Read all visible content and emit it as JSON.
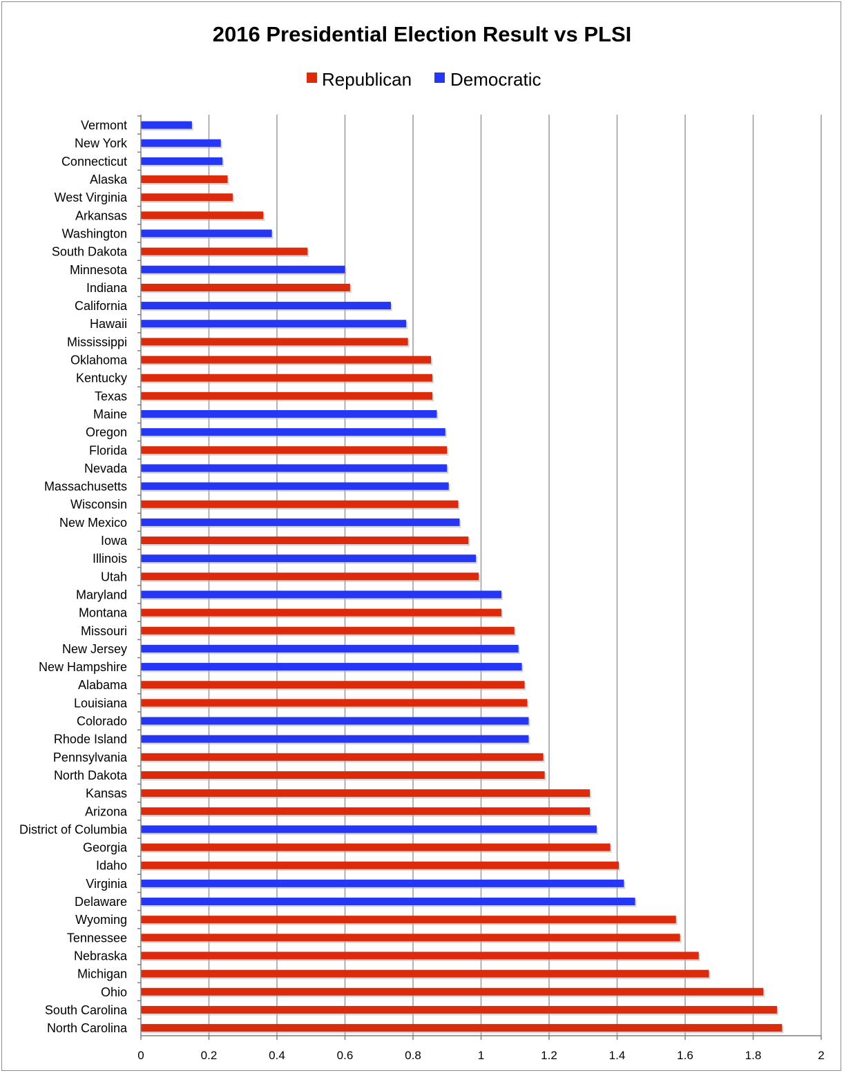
{
  "chart_data": {
    "type": "bar",
    "orientation": "horizontal",
    "title": "2016 Presidential Election Result vs PLSI",
    "xlabel": "",
    "ylabel": "",
    "xlim": [
      0,
      2
    ],
    "x_ticks": [
      "0",
      "0.2",
      "0.4",
      "0.6",
      "0.8",
      "1",
      "1.2",
      "1.4",
      "1.6",
      "1.8",
      "2"
    ],
    "grid": true,
    "legend_position": "top-center",
    "legend": [
      {
        "name": "Republican",
        "color": "#dd2a0b"
      },
      {
        "name": "Democratic",
        "color": "#2536f5"
      }
    ],
    "categories": [
      "Vermont",
      "New York",
      "Connecticut",
      "Alaska",
      "West Virginia",
      "Arkansas",
      "Washington",
      "South Dakota",
      "Minnesota",
      "Indiana",
      "California",
      "Hawaii",
      "Mississippi",
      "Oklahoma",
      "Kentucky",
      "Texas",
      "Maine",
      "Oregon",
      "Florida",
      "Nevada",
      "Massachusetts",
      "Wisconsin",
      "New Mexico",
      "Iowa",
      "Illinois",
      "Utah",
      "Maryland",
      "Montana",
      "Missouri",
      "New Jersey",
      "New Hampshire",
      "Alabama",
      "Louisiana",
      "Colorado",
      "Rhode Island",
      "Pennsylvania",
      "North Dakota",
      "Kansas",
      "Arizona",
      "District of Columbia",
      "Georgia",
      "Idaho",
      "Virginia",
      "Delaware",
      "Wyoming",
      "Tennessee",
      "Nebraska",
      "Michigan",
      "Ohio",
      "South Carolina",
      "North Carolina"
    ],
    "values": [
      0.15,
      0.235,
      0.24,
      0.255,
      0.27,
      0.36,
      0.385,
      0.49,
      0.6,
      0.615,
      0.735,
      0.78,
      0.785,
      0.853,
      0.857,
      0.857,
      0.87,
      0.895,
      0.9,
      0.9,
      0.905,
      0.933,
      0.937,
      0.963,
      0.985,
      0.993,
      1.06,
      1.06,
      1.098,
      1.11,
      1.12,
      1.128,
      1.136,
      1.14,
      1.14,
      1.183,
      1.187,
      1.32,
      1.32,
      1.34,
      1.38,
      1.405,
      1.42,
      1.453,
      1.573,
      1.585,
      1.64,
      1.67,
      1.83,
      1.87,
      1.885
    ],
    "party": [
      "Democratic",
      "Democratic",
      "Democratic",
      "Republican",
      "Republican",
      "Republican",
      "Democratic",
      "Republican",
      "Democratic",
      "Republican",
      "Democratic",
      "Democratic",
      "Republican",
      "Republican",
      "Republican",
      "Republican",
      "Democratic",
      "Democratic",
      "Republican",
      "Democratic",
      "Democratic",
      "Republican",
      "Democratic",
      "Republican",
      "Democratic",
      "Republican",
      "Democratic",
      "Republican",
      "Republican",
      "Democratic",
      "Democratic",
      "Republican",
      "Republican",
      "Democratic",
      "Democratic",
      "Republican",
      "Republican",
      "Republican",
      "Republican",
      "Democratic",
      "Republican",
      "Republican",
      "Democratic",
      "Democratic",
      "Republican",
      "Republican",
      "Republican",
      "Republican",
      "Republican",
      "Republican",
      "Republican"
    ]
  }
}
